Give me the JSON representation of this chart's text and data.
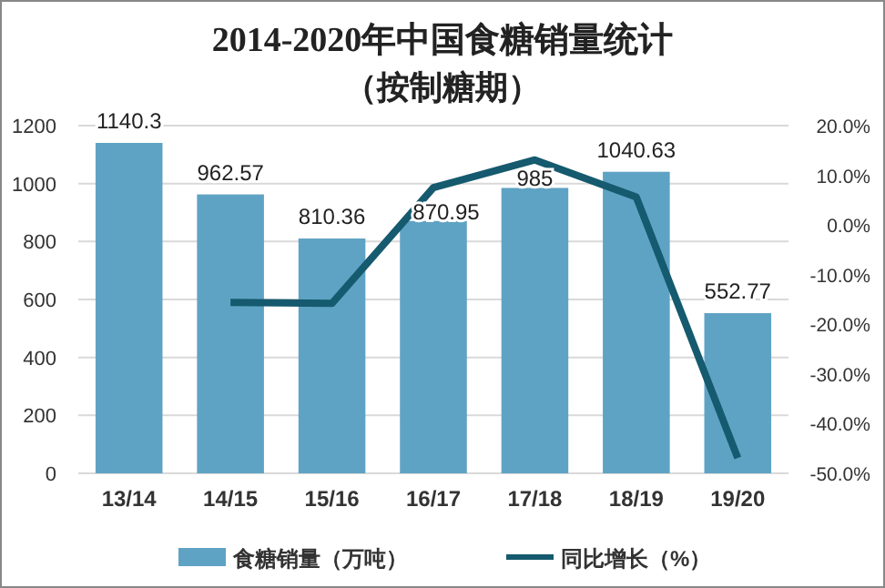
{
  "chart_data": {
    "type": "bar",
    "title": "2014-2020年中国食糖销量统计",
    "subtitle": "（按制糖期）",
    "categories": [
      "13/14",
      "14/15",
      "15/16",
      "16/17",
      "17/18",
      "18/19",
      "19/20"
    ],
    "series": [
      {
        "name": "食糖销量（万吨）",
        "type": "bar",
        "color": "#5fa3c4",
        "values": [
          1140.3,
          962.57,
          810.36,
          870.95,
          985,
          1040.63,
          552.77
        ],
        "value_labels": [
          "1140.3",
          "962.57",
          "810.36",
          "870.95",
          "985",
          "1040.63",
          "552.77"
        ]
      },
      {
        "name": "同比增长（%）",
        "type": "line",
        "axis": "y2",
        "color": "#155a6e",
        "values": [
          null,
          -15.6,
          -15.8,
          7.5,
          13.1,
          5.6,
          -46.9
        ]
      }
    ],
    "ylim": [
      0,
      1200
    ],
    "yticks": [
      0,
      200,
      400,
      600,
      800,
      1000,
      1200
    ],
    "y2lim": [
      -50,
      20
    ],
    "y2ticks": [
      {
        "value": -50,
        "label": "-50.0%"
      },
      {
        "value": -40,
        "label": "-40.0%"
      },
      {
        "value": -30,
        "label": "-30.0%"
      },
      {
        "value": -20,
        "label": "-20.0%"
      },
      {
        "value": -10,
        "label": "-10.0%"
      },
      {
        "value": 0,
        "label": "0.0%"
      },
      {
        "value": 10,
        "label": "10.0%"
      },
      {
        "value": 20,
        "label": "20.0%"
      }
    ],
    "grid": "y",
    "legend": "bottom",
    "marker": "none",
    "line_style": "solid"
  }
}
